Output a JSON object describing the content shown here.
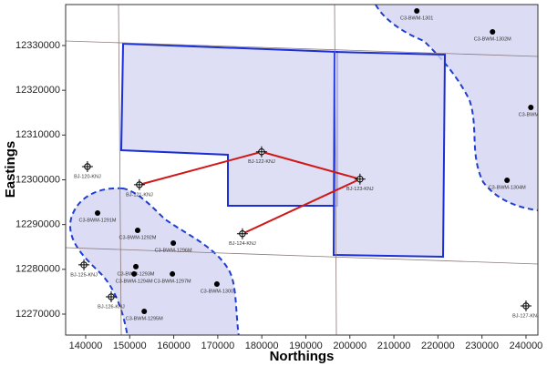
{
  "chart_data": {
    "type": "map",
    "xlabel": "Northings",
    "ylabel": "Eastings",
    "xlim": [
      135450,
      242700
    ],
    "ylim": [
      12265320,
      12339150
    ],
    "xticks": [
      140000,
      150000,
      160000,
      170000,
      180000,
      190000,
      200000,
      210000,
      220000,
      230000,
      240000
    ],
    "yticks": [
      12270000,
      12280000,
      12290000,
      12300000,
      12310000,
      12320000,
      12330000
    ],
    "wells": {
      "x": [
        140400,
        152200,
        179950,
        202300,
        175600,
        139600,
        145800,
        240000
      ],
      "y": [
        12302950,
        12298900,
        12306250,
        12300150,
        12287950,
        12281000,
        12273860,
        12271830
      ],
      "labels": [
        "BJ-120-KNJ",
        "BJ-121-KNJ",
        "BJ-122-KNJ",
        "BJ-123-KNJ",
        "BJ-124-KNJ",
        "BJ-125-KNJ",
        "BJ-126-KNJ",
        "BJ-127-KNJ"
      ]
    },
    "boreholes": {
      "x": [
        215200,
        232400,
        241100,
        235700,
        142700,
        151800,
        159900,
        151400,
        151000,
        159700,
        169800,
        153300
      ],
      "y": [
        12337730,
        12333050,
        12316170,
        12299900,
        12292570,
        12288700,
        12285870,
        12280590,
        12278960,
        12278960,
        12276720,
        12270600
      ],
      "labels": [
        "C3-BWM-1301",
        "C3-BWM-1302M",
        "C3-BWM-1",
        "C3-BWM-1304M",
        "C3-BWM-1291M",
        "C3-BWM-1292M",
        "C3-BWM-1296M",
        "C3-BWM-1293M",
        "C3-BWM-1294M",
        "C3-BWM-1297M",
        "C3-BWM-1300",
        "C3-BWM-1295M"
      ]
    }
  }
}
